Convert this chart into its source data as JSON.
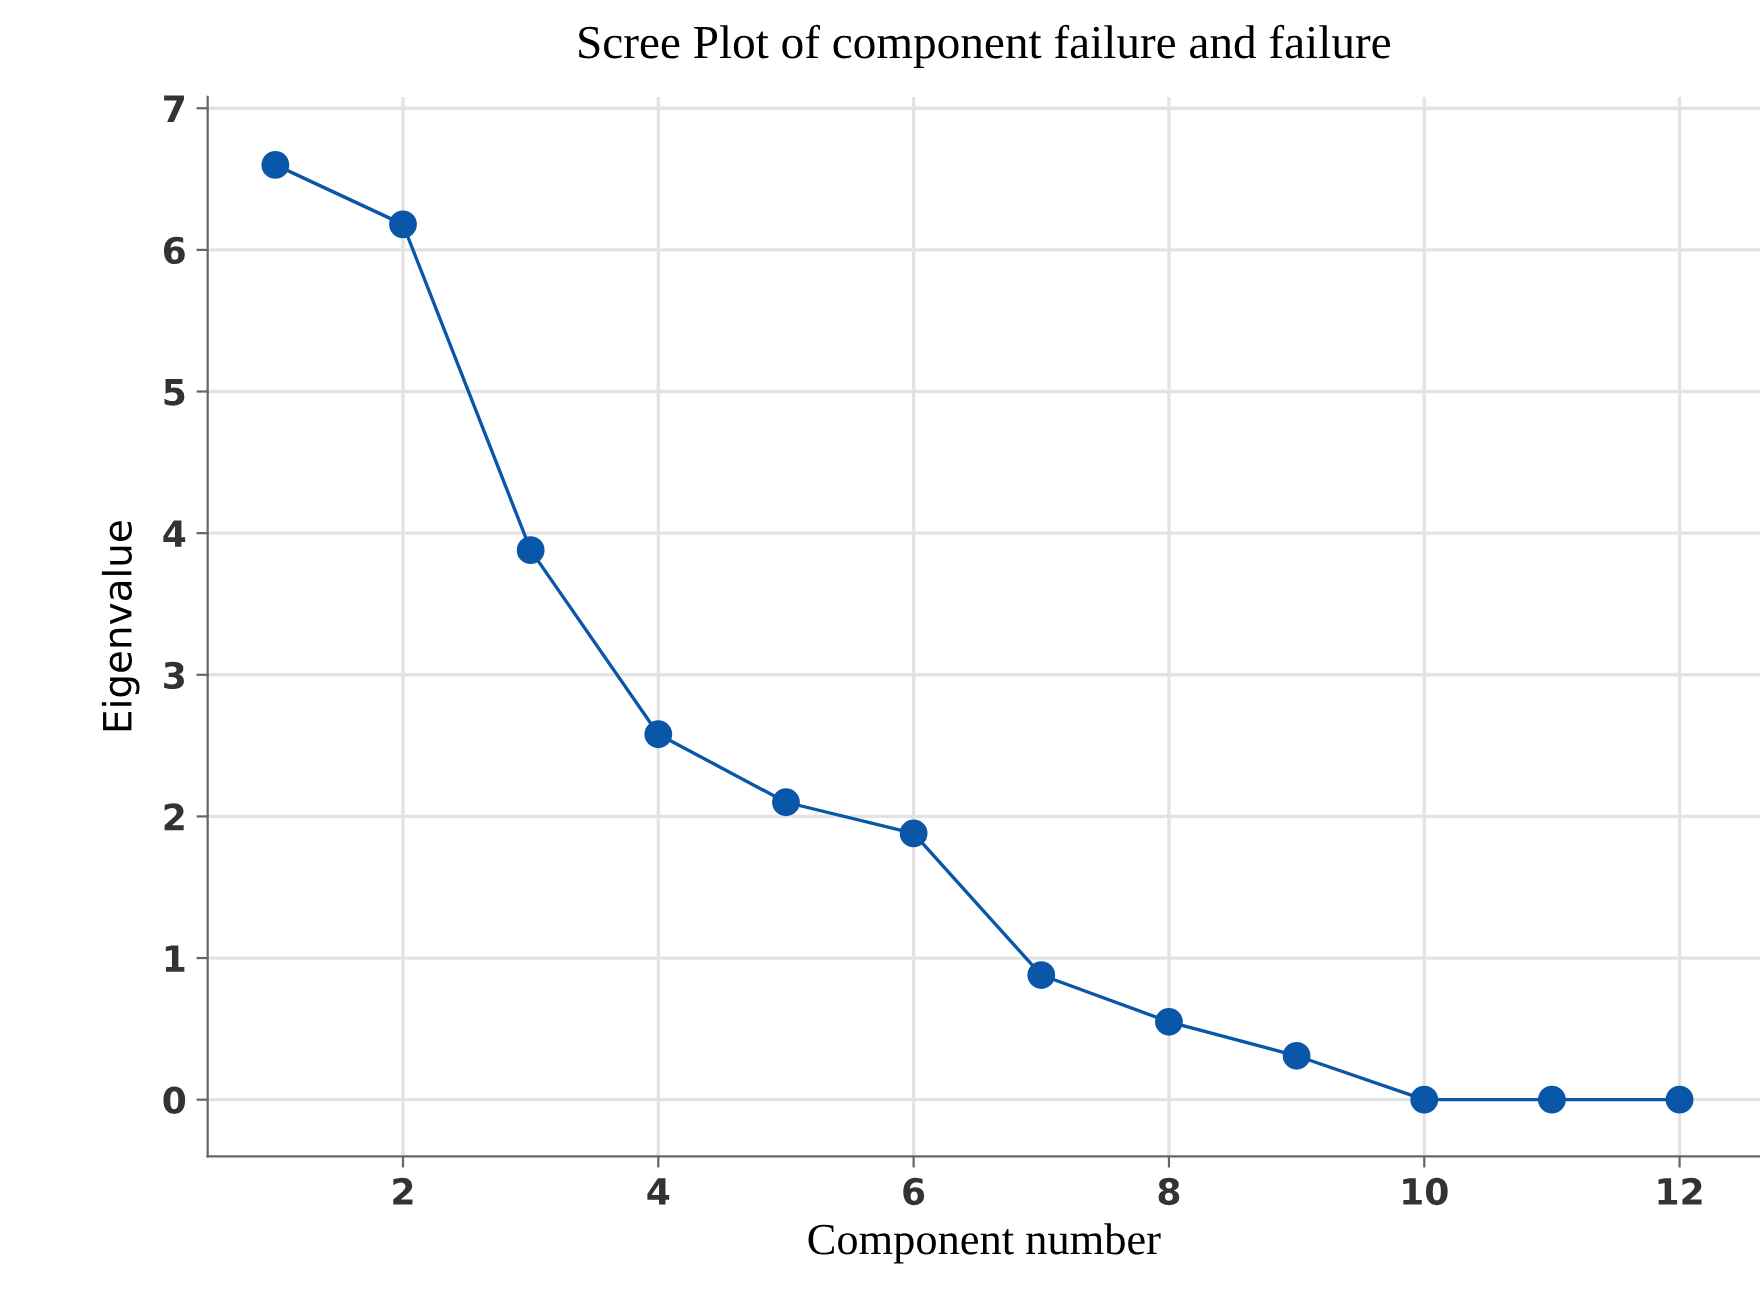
{
  "chart_data": {
    "type": "line",
    "title": "Scree Plot of component failure and failure",
    "xlabel": "Component number",
    "ylabel": "Eigenvalue",
    "x": [
      1,
      2,
      3,
      4,
      5,
      6,
      7,
      8,
      9,
      10,
      11,
      12
    ],
    "series": [
      {
        "color": "#0a56a8",
        "values": [
          6.6,
          6.18,
          3.88,
          2.58,
          2.1,
          1.88,
          0.88,
          0.55,
          0.31,
          0,
          0,
          0
        ]
      }
    ],
    "xlim": [
      0.47,
      12.63
    ],
    "xticks": [
      2,
      4,
      6,
      8,
      10,
      12
    ],
    "ylim": [
      -0.4,
      7.08
    ],
    "yticks": [
      0,
      1,
      2,
      3,
      4,
      5,
      6,
      7
    ],
    "grid": true,
    "marker": "circle",
    "line_style": "solid"
  }
}
